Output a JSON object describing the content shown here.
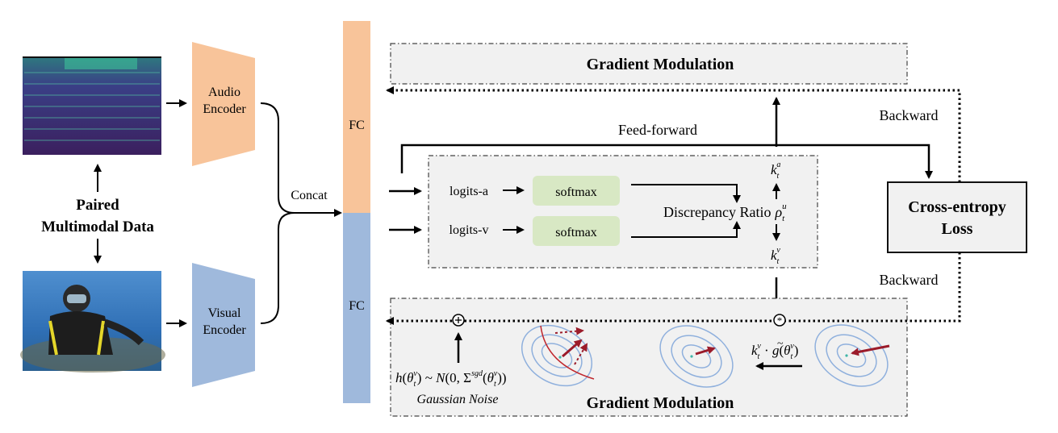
{
  "inputs": {
    "paired_line1": "Paired",
    "paired_line2": "Multimodal Data"
  },
  "encoders": {
    "audio_line1": "Audio",
    "audio_line2": "Encoder",
    "visual_line1": "Visual",
    "visual_line2": "Encoder",
    "audio_color": "#f8c49a",
    "visual_color": "#9fb9dc"
  },
  "concat_label": "Concat",
  "fc_label": "FC",
  "feed_forward_label": "Feed-forward",
  "backward_label": "Backward",
  "loss": {
    "line1": "Cross-entropy",
    "line2": "Loss"
  },
  "gradient_modulation_top": "Gradient Modulation",
  "gradient_modulation_bottom": "Gradient Modulation",
  "discrepancy": {
    "logits_a": "logits-a",
    "logits_v": "logits-v",
    "softmax": "softmax",
    "ratio_label": "Discrepancy Ratio",
    "rho_symbol": "ρ",
    "rho_sub": "t",
    "rho_sup": "u",
    "k_symbol": "k",
    "k_sub": "t",
    "k_a_sup": "a",
    "k_v_sup": "v",
    "softmax_color": "#d8e8c4"
  },
  "noise": {
    "label": "Gaussian Noise",
    "h": "h",
    "theta": "θ",
    "approx": " ~ ",
    "N": "N",
    "zero": "(0, ",
    "Sigma": "Σ",
    "sgd": "sgd",
    "open_paren": "(",
    "close": ")",
    "close_double": "))",
    "sub_t": "t",
    "sup_v": "v"
  },
  "scaled_gradient": {
    "k": "k",
    "dot": " · ",
    "g": "g",
    "tilde": "~",
    "theta": "θ",
    "open_paren": "(",
    "close_paren": ")",
    "sub_t": "t",
    "sup_v": "v"
  },
  "colors": {
    "box_fill": "#f1f1f1",
    "contour": "#8fb0dd",
    "grad_arrow": "#9b1b2a",
    "optimum_dot": "#3fb6a8"
  }
}
